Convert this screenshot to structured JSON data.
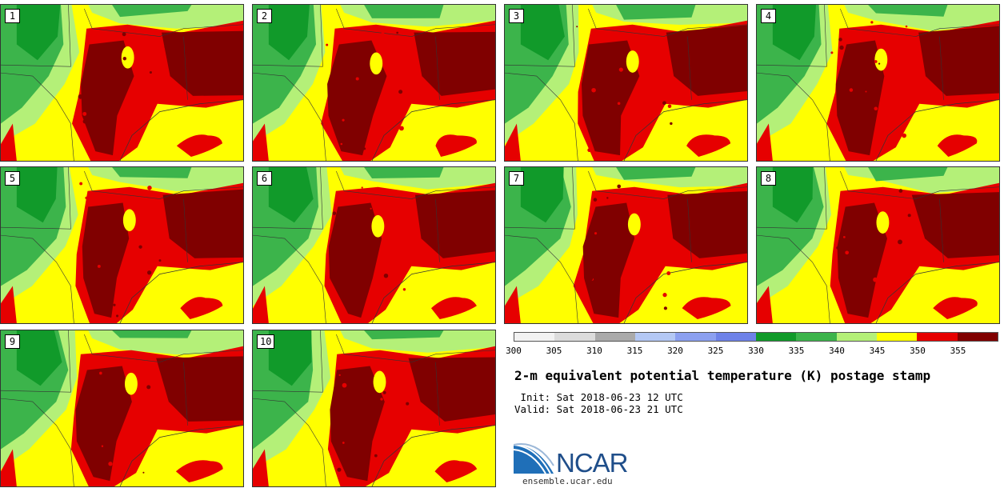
{
  "panels": [
    {
      "label": "1"
    },
    {
      "label": "2"
    },
    {
      "label": "3"
    },
    {
      "label": "4"
    },
    {
      "label": "5"
    },
    {
      "label": "6"
    },
    {
      "label": "7"
    },
    {
      "label": "8"
    },
    {
      "label": "9"
    },
    {
      "label": "10"
    }
  ],
  "colorbar": {
    "ticks": [
      "300",
      "305",
      "310",
      "315",
      "320",
      "325",
      "330",
      "335",
      "340",
      "345",
      "350",
      "355"
    ],
    "colors": [
      "#f2f2f2",
      "#dcdcdc",
      "#aaaaaa",
      "#b4c8f4",
      "#8ca0f0",
      "#6e82e8",
      "#119a2a",
      "#3cb44b",
      "#b4f078",
      "#ffff00",
      "#e60000",
      "#800000"
    ]
  },
  "map_colors": {
    "dark_green": "#119a2a",
    "green": "#3cb44b",
    "light_green": "#b4f078",
    "yellow": "#ffff00",
    "red": "#e60000",
    "dark_red": "#800000"
  },
  "title": "2-m equivalent potential temperature (K) postage stamp",
  "init": " Init: Sat 2018-06-23 12 UTC",
  "valid": "Valid: Sat 2018-06-23 21 UTC",
  "logo": {
    "text": "NCAR",
    "brand_color": "#1f4e8a"
  },
  "site": "ensemble.ucar.edu"
}
